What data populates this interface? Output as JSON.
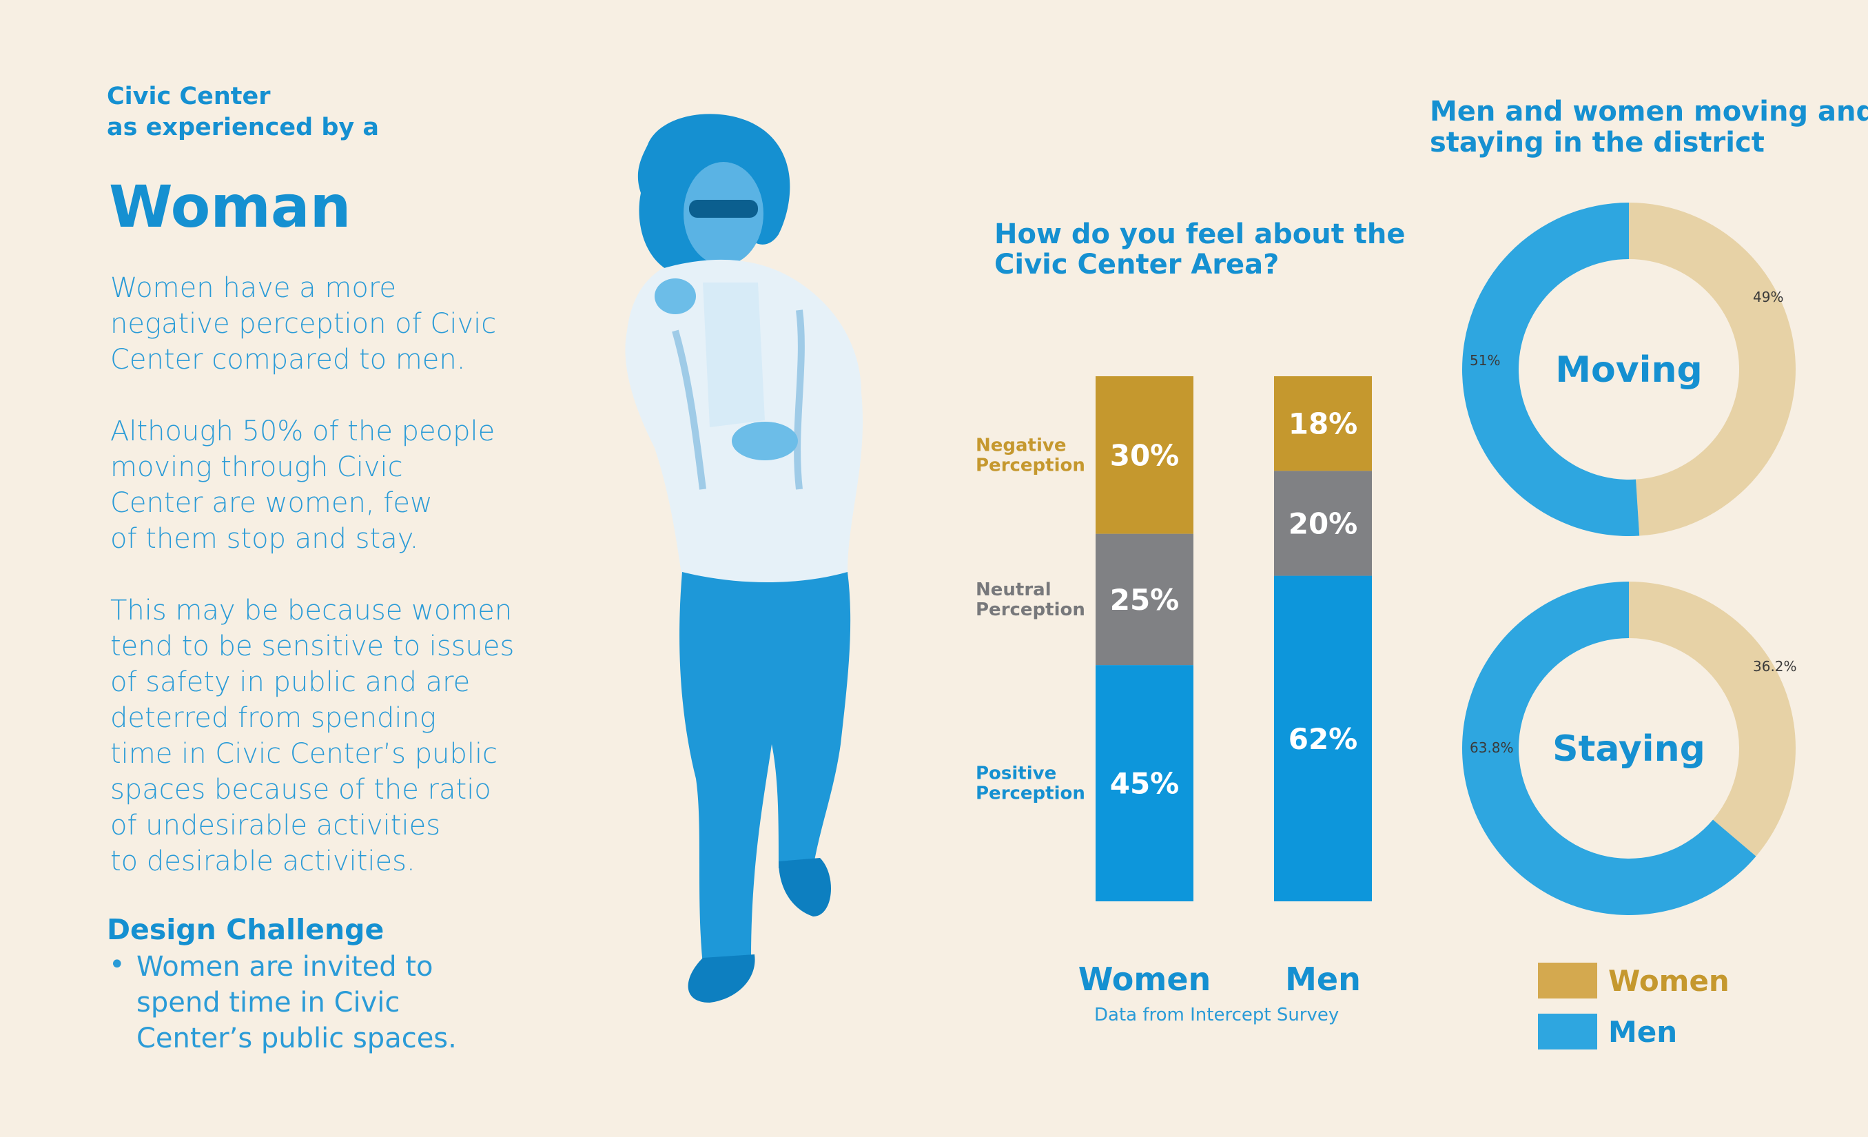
{
  "intro": {
    "kicker_line1": "Civic Center",
    "kicker_line2": "as experienced by a",
    "heading": "Woman"
  },
  "body": {
    "p1": [
      "Women have a more",
      "negative perception of Civic",
      "Center compared to men."
    ],
    "p2": [
      "Although 50% of the people",
      "moving through Civic",
      "Center are women, few",
      "of them stop and stay."
    ],
    "p3": [
      "This may be because women",
      "tend to be sensitive to issues",
      "of safety in public and are",
      "deterred from spending",
      "time in Civic Center’s public",
      "spaces because of the ratio",
      "of undesirable activities",
      "to desirable activities."
    ]
  },
  "challenge": {
    "title": "Design Challenge",
    "bullet": "•",
    "lines": [
      "Women are invited to",
      "spend time in Civic",
      "Center’s public spaces."
    ]
  },
  "chart_data": [
    {
      "type": "bar",
      "stacked": true,
      "title": "How do you feel about the Civic Center Area?",
      "title_lines": [
        "How do you feel about the",
        "Civic Center Area?"
      ],
      "categories": [
        "Women",
        "Men"
      ],
      "series": [
        {
          "name": "Positive Perception",
          "label_lines": [
            "Positive",
            "Perception"
          ],
          "color": "#0d96db",
          "values": [
            45,
            62
          ],
          "labels": [
            "45%",
            "62%"
          ]
        },
        {
          "name": "Neutral Perception",
          "label_lines": [
            "Neutral",
            "Perception"
          ],
          "color": "#808184",
          "values": [
            25,
            20
          ],
          "labels": [
            "25%",
            "20%"
          ]
        },
        {
          "name": "Negative Perception",
          "label_lines": [
            "Negative",
            "Perception"
          ],
          "color": "#c5982e",
          "values": [
            30,
            18
          ],
          "labels": [
            "30%",
            "18%"
          ]
        }
      ],
      "ylim": [
        0,
        100
      ],
      "source": "Data from Intercept Survey"
    },
    {
      "type": "pie",
      "donut": true,
      "title": "Men and women moving and staying in the district",
      "title_lines": [
        "Men and women moving and",
        "staying in the district"
      ],
      "charts": [
        {
          "center_label": "Moving",
          "slices": [
            {
              "name": "Women",
              "value": 49,
              "label": "49%"
            },
            {
              "name": "Men",
              "value": 51,
              "label": "51%"
            }
          ]
        },
        {
          "center_label": "Staying",
          "slices": [
            {
              "name": "Women",
              "value": 36.2,
              "label": "36.2%"
            },
            {
              "name": "Men",
              "value": 63.8,
              "label": "63.8%"
            }
          ]
        }
      ],
      "legend": [
        {
          "name": "Women",
          "color": "#d4a94f",
          "text_color": "#c5982e"
        },
        {
          "name": "Men",
          "color": "#2ea6e0",
          "text_color": "#1590d1"
        }
      ],
      "colors": {
        "women": "#e7d2a6",
        "men": "#2ea6e0"
      }
    }
  ]
}
